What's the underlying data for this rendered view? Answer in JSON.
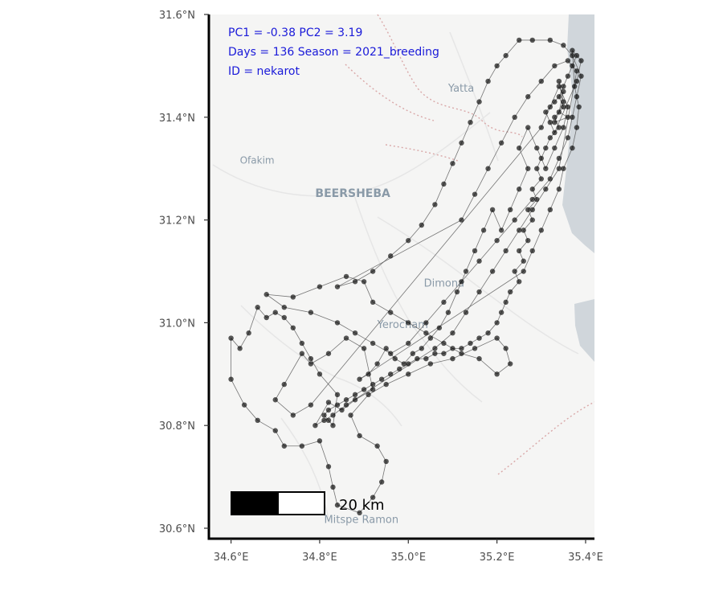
{
  "map": {
    "lon_range": [
      34.55,
      35.42
    ],
    "lat_range": [
      30.6,
      31.6
    ],
    "x_ticks": [
      {
        "value": 34.6,
        "label": "34.6°E"
      },
      {
        "value": 34.8,
        "label": "34.8°E"
      },
      {
        "value": 35.0,
        "label": "35.0°E"
      },
      {
        "value": 35.2,
        "label": "35.2°E"
      },
      {
        "value": 35.4,
        "label": "35.4°E"
      }
    ],
    "y_ticks": [
      {
        "value": 30.6,
        "label": "30.6°N"
      },
      {
        "value": 30.8,
        "label": "30.8°N"
      },
      {
        "value": 31.0,
        "label": "31.0°N"
      },
      {
        "value": 31.2,
        "label": "31.2°N"
      },
      {
        "value": 31.4,
        "label": "31.4°N"
      },
      {
        "value": 31.6,
        "label": "31.6°N"
      }
    ],
    "info": {
      "line1": "PC1 = -0.38  PC2 = 3.19",
      "line2": "Days = 136  Season = 2021_breeding",
      "line3": "ID = nekarot"
    },
    "scale_bar": {
      "label": "20 km"
    },
    "places": [
      {
        "name": "Yatta",
        "lon": 35.09,
        "lat": 31.45
      },
      {
        "name": "Ofakim",
        "lon": 34.62,
        "lat": 31.31
      },
      {
        "name": "BEERSHEBA",
        "lon": 34.79,
        "lat": 31.245
      },
      {
        "name": "Dimona",
        "lon": 35.035,
        "lat": 31.07
      },
      {
        "name": "Yerocham",
        "lon": 34.93,
        "lat": 30.99
      },
      {
        "name": "Mitspe Ramon",
        "lon": 34.81,
        "lat": 30.61
      }
    ],
    "colors": {
      "land": "#f5f5f4",
      "water": "#d0d6db",
      "roads": "#e6e6e6",
      "borders": "#d9a8a8",
      "track_point": "#000000",
      "track_line": "#555555",
      "info_text": "#1a1ad9"
    },
    "track_points": [
      [
        35.38,
        31.52
      ],
      [
        35.37,
        31.5
      ],
      [
        35.36,
        31.48
      ],
      [
        35.35,
        31.46
      ],
      [
        35.34,
        31.44
      ],
      [
        35.35,
        31.42
      ],
      [
        35.33,
        31.4
      ],
      [
        35.34,
        31.38
      ],
      [
        35.32,
        31.36
      ],
      [
        35.31,
        31.34
      ],
      [
        35.3,
        31.32
      ],
      [
        35.29,
        31.3
      ],
      [
        35.3,
        31.28
      ],
      [
        35.28,
        31.26
      ],
      [
        35.29,
        31.24
      ],
      [
        35.27,
        31.22
      ],
      [
        35.28,
        31.2
      ],
      [
        35.26,
        31.18
      ],
      [
        35.27,
        31.16
      ],
      [
        35.25,
        31.14
      ],
      [
        35.26,
        31.12
      ],
      [
        35.24,
        31.1
      ],
      [
        35.25,
        31.08
      ],
      [
        35.23,
        31.06
      ],
      [
        35.22,
        31.04
      ],
      [
        35.21,
        31.02
      ],
      [
        35.2,
        31.0
      ],
      [
        35.18,
        30.98
      ],
      [
        35.16,
        30.97
      ],
      [
        35.14,
        30.96
      ],
      [
        35.12,
        30.95
      ],
      [
        35.1,
        30.95
      ],
      [
        35.08,
        30.94
      ],
      [
        35.06,
        30.94
      ],
      [
        35.04,
        30.93
      ],
      [
        35.02,
        30.93
      ],
      [
        35.0,
        30.92
      ],
      [
        34.98,
        30.91
      ],
      [
        34.96,
        30.9
      ],
      [
        34.94,
        30.89
      ],
      [
        34.92,
        30.88
      ],
      [
        34.9,
        30.87
      ],
      [
        34.88,
        30.86
      ],
      [
        34.86,
        30.85
      ],
      [
        34.84,
        30.84
      ],
      [
        34.82,
        30.83
      ],
      [
        34.81,
        30.82
      ],
      [
        34.82,
        30.81
      ],
      [
        34.83,
        30.8
      ],
      [
        34.84,
        30.86
      ],
      [
        34.8,
        30.9
      ],
      [
        34.78,
        30.93
      ],
      [
        34.76,
        30.96
      ],
      [
        34.74,
        30.99
      ],
      [
        34.72,
        31.01
      ],
      [
        34.7,
        31.02
      ],
      [
        34.68,
        31.01
      ],
      [
        34.66,
        31.03
      ],
      [
        34.64,
        30.98
      ],
      [
        34.62,
        30.95
      ],
      [
        34.6,
        30.97
      ],
      [
        34.6,
        30.89
      ],
      [
        34.63,
        30.84
      ],
      [
        34.66,
        30.81
      ],
      [
        34.7,
        30.79
      ],
      [
        34.72,
        30.76
      ],
      [
        34.76,
        30.76
      ],
      [
        34.8,
        30.77
      ],
      [
        34.82,
        30.72
      ],
      [
        34.83,
        30.68
      ],
      [
        34.84,
        30.645
      ],
      [
        34.89,
        30.63
      ],
      [
        34.92,
        30.66
      ],
      [
        34.94,
        30.69
      ],
      [
        34.95,
        30.73
      ],
      [
        34.93,
        30.76
      ],
      [
        34.89,
        30.78
      ],
      [
        34.87,
        30.82
      ],
      [
        34.91,
        30.86
      ],
      [
        34.95,
        30.88
      ],
      [
        35.0,
        30.9
      ],
      [
        35.05,
        30.92
      ],
      [
        35.1,
        30.93
      ],
      [
        35.15,
        30.95
      ],
      [
        35.2,
        30.97
      ],
      [
        35.22,
        30.95
      ],
      [
        35.23,
        30.92
      ],
      [
        35.2,
        30.9
      ],
      [
        35.16,
        30.93
      ],
      [
        35.12,
        30.94
      ],
      [
        35.08,
        30.96
      ],
      [
        35.04,
        30.98
      ],
      [
        35.0,
        31.0
      ],
      [
        34.96,
        31.02
      ],
      [
        34.92,
        31.04
      ],
      [
        34.9,
        31.08
      ],
      [
        34.86,
        31.09
      ],
      [
        34.8,
        31.07
      ],
      [
        34.74,
        31.05
      ],
      [
        34.68,
        31.055
      ],
      [
        34.72,
        31.03
      ],
      [
        34.78,
        31.02
      ],
      [
        34.84,
        31.0
      ],
      [
        34.88,
        30.98
      ],
      [
        34.92,
        30.96
      ],
      [
        34.96,
        30.94
      ],
      [
        35.0,
        30.96
      ],
      [
        35.04,
        31.0
      ],
      [
        35.08,
        31.04
      ],
      [
        35.12,
        31.08
      ],
      [
        35.16,
        31.12
      ],
      [
        35.2,
        31.16
      ],
      [
        35.24,
        31.2
      ],
      [
        35.28,
        31.24
      ],
      [
        35.32,
        31.28
      ],
      [
        35.34,
        31.32
      ],
      [
        35.36,
        31.36
      ],
      [
        35.37,
        31.4
      ],
      [
        35.38,
        31.44
      ],
      [
        35.39,
        31.48
      ],
      [
        35.37,
        31.52
      ],
      [
        35.35,
        31.54
      ],
      [
        35.32,
        31.55
      ],
      [
        35.28,
        31.55
      ],
      [
        35.25,
        31.55
      ],
      [
        35.22,
        31.52
      ],
      [
        35.2,
        31.5
      ],
      [
        35.18,
        31.47
      ],
      [
        35.16,
        31.43
      ],
      [
        35.14,
        31.39
      ],
      [
        35.12,
        31.35
      ],
      [
        35.1,
        31.31
      ],
      [
        35.08,
        31.27
      ],
      [
        35.06,
        31.23
      ],
      [
        35.03,
        31.19
      ],
      [
        35.0,
        31.16
      ],
      [
        34.96,
        31.13
      ],
      [
        34.92,
        31.1
      ],
      [
        34.88,
        31.08
      ],
      [
        34.84,
        31.07
      ],
      [
        35.12,
        31.2
      ],
      [
        35.15,
        31.25
      ],
      [
        35.18,
        31.3
      ],
      [
        35.21,
        31.35
      ],
      [
        35.24,
        31.4
      ],
      [
        35.27,
        31.44
      ],
      [
        35.3,
        31.47
      ],
      [
        35.33,
        31.5
      ],
      [
        35.36,
        31.51
      ],
      [
        35.38,
        31.49
      ],
      [
        35.34,
        31.3
      ],
      [
        35.31,
        31.26
      ],
      [
        35.28,
        31.22
      ],
      [
        35.25,
        31.18
      ],
      [
        35.22,
        31.14
      ],
      [
        35.19,
        31.1
      ],
      [
        35.16,
        31.06
      ],
      [
        35.13,
        31.02
      ],
      [
        35.1,
        30.98
      ],
      [
        35.06,
        30.95
      ],
      [
        34.86,
        30.84
      ],
      [
        34.83,
        30.82
      ],
      [
        34.81,
        30.81
      ],
      [
        34.79,
        30.8
      ],
      [
        34.82,
        30.845
      ],
      [
        34.85,
        30.83
      ],
      [
        34.88,
        30.85
      ],
      [
        34.92,
        30.87
      ],
      [
        34.9,
        30.95
      ],
      [
        34.86,
        30.97
      ],
      [
        34.82,
        30.94
      ],
      [
        34.78,
        30.92
      ],
      [
        34.76,
        30.94
      ],
      [
        34.72,
        30.88
      ],
      [
        34.7,
        30.85
      ],
      [
        34.74,
        30.82
      ],
      [
        34.78,
        30.84
      ],
      [
        35.3,
        31.38
      ],
      [
        35.32,
        31.42
      ],
      [
        35.34,
        31.46
      ],
      [
        35.36,
        31.42
      ],
      [
        35.35,
        31.38
      ],
      [
        35.33,
        31.34
      ],
      [
        35.31,
        31.3
      ],
      [
        35.29,
        31.34
      ],
      [
        35.27,
        31.38
      ],
      [
        35.25,
        31.34
      ],
      [
        35.27,
        31.3
      ],
      [
        35.25,
        31.26
      ],
      [
        35.23,
        31.22
      ],
      [
        35.21,
        31.18
      ],
      [
        35.19,
        31.22
      ],
      [
        35.17,
        31.18
      ],
      [
        35.15,
        31.14
      ],
      [
        35.13,
        31.1
      ],
      [
        35.11,
        31.06
      ],
      [
        35.09,
        31.02
      ],
      [
        35.07,
        30.99
      ],
      [
        35.05,
        30.97
      ],
      [
        35.03,
        30.95
      ],
      [
        35.01,
        30.94
      ],
      [
        34.99,
        30.92
      ],
      [
        34.97,
        30.93
      ],
      [
        34.95,
        30.95
      ],
      [
        34.93,
        30.92
      ],
      [
        34.91,
        30.9
      ],
      [
        34.89,
        30.89
      ],
      [
        35.26,
        31.1
      ],
      [
        35.28,
        31.14
      ],
      [
        35.3,
        31.18
      ],
      [
        35.32,
        31.22
      ],
      [
        35.34,
        31.26
      ],
      [
        35.35,
        31.3
      ],
      [
        35.37,
        31.34
      ],
      [
        35.38,
        31.38
      ],
      [
        35.385,
        31.42
      ],
      [
        35.375,
        31.46
      ],
      [
        35.37,
        31.53
      ],
      [
        35.39,
        31.51
      ],
      [
        35.38,
        31.47
      ],
      [
        35.33,
        31.37
      ],
      [
        35.32,
        31.39
      ],
      [
        35.31,
        31.41
      ],
      [
        35.33,
        31.43
      ],
      [
        35.35,
        31.45
      ],
      [
        35.34,
        31.41
      ],
      [
        35.36,
        31.4
      ],
      [
        35.33,
        31.39
      ],
      [
        35.35,
        31.43
      ],
      [
        35.34,
        31.47
      ]
    ]
  }
}
